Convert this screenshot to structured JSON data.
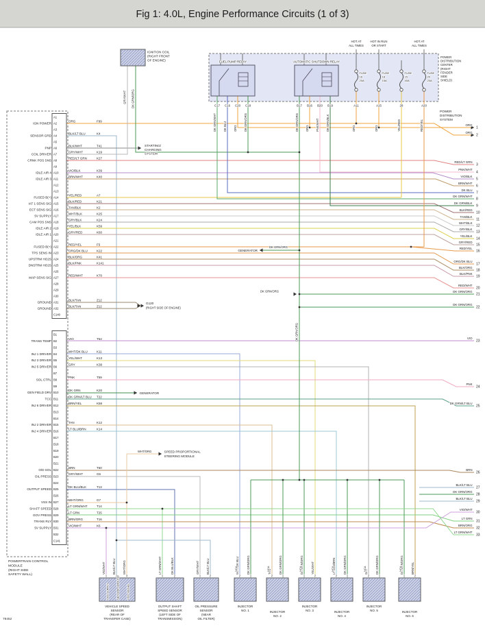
{
  "title": "Fig 1: 4.0L, Engine Performance Circuits (1 of 3)",
  "drawing_number": "78452",
  "colors": {
    "ORG": "#f0a43c",
    "BLK/LT BLU": "#9db8cc",
    "BLK/WHT": "#8a8a8a",
    "GRY/WHT": "#b9b9b9",
    "RED/LT GRN": "#e08080",
    "VIO/BLK": "#b48cc8",
    "BRN/WHT": "#c09a6a",
    "YEL/RED": "#e8c84a",
    "BLK/RED": "#a07070",
    "TAN/BLK": "#cbb089",
    "WHT/BLK": "#c8c8c8",
    "GRY/BLK": "#a8a8a8",
    "YEL/BLK": "#ddd04e",
    "GRY/RED": "#bfa0a0",
    "RED/YEL": "#e89a4a",
    "ORG/DK BLU": "#e09a50",
    "BLK/ORG": "#a98a60",
    "BLK/PNK": "#c898a8",
    "RED/WHT": "#e89090",
    "BLK/TAN": "#9a8a70",
    "VIO": "#c08ad0",
    "WHT/DK BLU": "#9aaad8",
    "YEL/WHT": "#e0d87a",
    "GRY": "#b0b0b0",
    "PNK": "#f0a8c0",
    "DK GRN": "#3f8f4f",
    "DK GRN/LT BLU": "#5aa08a",
    "BRN/YEL": "#c0a050",
    "TAN": "#d8bc90",
    "LT BLU/BRN": "#9cc8d8",
    "BRN": "#a8845a",
    "DK BLU/BLK": "#6070b0",
    "WHT/ORG": "#e8c8a0",
    "LT GRN/WHT": "#90d890",
    "LT GRN": "#80d080",
    "BRN/ORG": "#bc8a50",
    "VIO/WHT": "#cca0dc",
    "DK GRN/ORG": "#4a9a55",
    "DK GRN/WHT": "#58a868",
    "DK BLU": "#5868c0",
    "DK GRN/BLK": "#3a7a4a",
    "PNK/WHT": "#f2b8cc"
  },
  "ignition_coil": {
    "label_lines": [
      "IGNITION COIL",
      "(RIGHT FRONT",
      "OF ENGINE)"
    ],
    "wire_labels": [
      "GRY/WHT",
      "DK GRN/ORG"
    ]
  },
  "pdc": {
    "hot_labels": [
      [
        "HOT AT",
        "ALL TIMES"
      ],
      [
        "HOT IN RUN",
        "OR START"
      ],
      [
        "HOT AT",
        "ALL TIMES"
      ]
    ],
    "relay_labels": [
      "FUEL PUMP RELAY",
      "AUTOMATIC SHUTDOWN RELAY"
    ],
    "fuses": [
      {
        "label": "FUSE",
        "number": "16",
        "amps": "20A"
      },
      {
        "label": "FUSE",
        "number": "18",
        "amps": "15A"
      },
      {
        "label": "FUSE",
        "number": "15",
        "amps": "40A"
      },
      {
        "label": "FUSE",
        "number": "20",
        "amps": "20A"
      }
    ],
    "center_label_lines": [
      "POWER",
      "DISTRIBUTION",
      "CENTER",
      "(RIGHT",
      "FENDER",
      "SIDE",
      "SHIELD)"
    ],
    "drops": [
      {
        "label": "C17",
        "wire": "DK GRN/WHT"
      },
      {
        "label": "C16",
        "wire": "DK BLU"
      },
      {
        "label": "C20",
        "wire": "ORG"
      },
      {
        "label": "C18",
        "wire": "DK GRN/ORG"
      },
      {
        "label": "B17",
        "wire": "DK GRN/ORG"
      },
      {
        "label": "B16",
        "wire": "ORG"
      },
      {
        "label": "B20",
        "wire": "PNK/WHT"
      },
      {
        "label": "B19",
        "wire": "DK GRN/BLK"
      },
      {
        "label": "A11",
        "wire": "ORG"
      },
      {
        "label": "A15",
        "wire": "ORG"
      },
      {
        "label": "28",
        "wire": "YEL/RED"
      },
      {
        "label": "A20",
        "wire": "RED/YEL"
      }
    ]
  },
  "power_distribution_system_lines": [
    "POWER",
    "DISTRIBUTION",
    "SYSTEM"
  ],
  "pcm": {
    "module_label_lines": [
      "POWERTRAIN CONTROL",
      "MODULE",
      "(RIGHT SIDE",
      "SAFETY WALL)"
    ],
    "connector_a": {
      "end_label": "C140",
      "pins": [
        {
          "pin": "A1"
        },
        {
          "pin": "A2",
          "fn": "IGN POWER",
          "wire": "ORG",
          "ckt": "F99"
        },
        {
          "pin": "A3"
        },
        {
          "pin": "A4",
          "fn": "SENSOR GRD",
          "wire": "BLK/LT BLU",
          "ckt": "K4"
        },
        {
          "pin": "A5"
        },
        {
          "pin": "A6",
          "fn": "PNP",
          "wire": "BLK/WHT",
          "ckt": "T41"
        },
        {
          "pin": "A7",
          "fn": "COIL DRIVER",
          "wire": "GRY/WHT",
          "ckt": "K19"
        },
        {
          "pin": "A8",
          "fn": "CRNK POS SNS",
          "wire": "RED/LT GRN",
          "ckt": "K27"
        },
        {
          "pin": "A9"
        },
        {
          "pin": "A10",
          "fn": "IDLE AIR 4",
          "wire": "VIO/BLK",
          "ckt": "K39"
        },
        {
          "pin": "A11",
          "fn": "IDLE AIR 3",
          "wire": "BRN/WHT",
          "ckt": "K40"
        },
        {
          "pin": "A12"
        },
        {
          "pin": "A13"
        },
        {
          "pin": "A14",
          "fn": "FUSED B(+)",
          "wire": "YEL/RED",
          "ckt": "A7"
        },
        {
          "pin": "A15",
          "fn": "IAT 1 SENS SIG",
          "wire": "BLK/RED",
          "ckt": "K21"
        },
        {
          "pin": "A16",
          "fn": "ECT SENS SIG",
          "wire": "TAN/BLK",
          "ckt": "K2"
        },
        {
          "pin": "A17",
          "fn": "5V SUPPLY",
          "wire": "WHT/BLK",
          "ckt": "K25"
        },
        {
          "pin": "A18",
          "fn": "CAM POS SNS",
          "wire": "GRY/BLK",
          "ckt": "K24"
        },
        {
          "pin": "A19",
          "fn": "IDLE AIR 2",
          "wire": "YEL/BLK",
          "ckt": "K59"
        },
        {
          "pin": "A20",
          "fn": "IDLE AIR 1",
          "wire": "GRY/RED",
          "ckt": "K60"
        },
        {
          "pin": "A21"
        },
        {
          "pin": "A22",
          "fn": "FUSED B(+)",
          "wire": "RED/YEL",
          "ckt": "F5"
        },
        {
          "pin": "A23",
          "fn": "TPS SENS IN",
          "wire": "ORG/DK BLU",
          "ckt": "K22"
        },
        {
          "pin": "A24",
          "fn": "UPSTRM HO2S",
          "wire": "BLK/ORG",
          "ckt": "K41"
        },
        {
          "pin": "A25",
          "fn": "DNSTRM HO2S",
          "wire": "BLK/PNK",
          "ckt": "K141"
        },
        {
          "pin": "A26"
        },
        {
          "pin": "A27",
          "fn": "MAP SENS SIG",
          "wire": "RED/WHT",
          "ckt": "K70"
        },
        {
          "pin": "A28"
        },
        {
          "pin": "A29"
        },
        {
          "pin": "A30"
        },
        {
          "pin": "A31",
          "fn": "GROUND",
          "wire": "BLK/TAN",
          "ckt": "Z12"
        },
        {
          "pin": "A32",
          "fn": "GROUND",
          "wire": "BLK/TAN",
          "ckt": "Z12"
        }
      ]
    },
    "connector_b": {
      "end_label": "C141",
      "pins": [
        {
          "pin": "B1"
        },
        {
          "pin": "B2",
          "fn": "TRANS TEMP",
          "wire": "VIO",
          "ckt": "T54"
        },
        {
          "pin": "B3"
        },
        {
          "pin": "B4",
          "fn": "INJ 1 DRIVER",
          "wire": "WHT/DK BLU",
          "ckt": "K11"
        },
        {
          "pin": "B5",
          "fn": "INJ 3 DRIVER",
          "wire": "YEL/WHT",
          "ckt": "K13"
        },
        {
          "pin": "B6",
          "fn": "INJ 5 DRIVER",
          "wire": "GRY",
          "ckt": "K38"
        },
        {
          "pin": "B7"
        },
        {
          "pin": "B8",
          "fn": "SOL CTRL",
          "wire": "PNK",
          "ckt": "T59"
        },
        {
          "pin": "B9"
        },
        {
          "pin": "B10",
          "fn": "GEN FIELD DRV",
          "wire": "DK GRN",
          "ckt": "K20"
        },
        {
          "pin": "B11",
          "fn": "TCC",
          "wire": "DK GRN/LT BLU",
          "ckt": "T22"
        },
        {
          "pin": "B12",
          "fn": "INJ 6 DRIVER",
          "wire": "BRN/YEL",
          "ckt": "K58"
        },
        {
          "pin": "B13"
        },
        {
          "pin": "B14"
        },
        {
          "pin": "B15",
          "fn": "INJ 2 DRIVER",
          "wire": "TAN",
          "ckt": "K12"
        },
        {
          "pin": "B16",
          "fn": "INJ 4 DRIVER",
          "wire": "LT BLU/BRN",
          "ckt": "K14"
        },
        {
          "pin": "B17"
        },
        {
          "pin": "B18"
        },
        {
          "pin": "B19"
        },
        {
          "pin": "B20"
        },
        {
          "pin": "B21"
        },
        {
          "pin": "B22",
          "fn": "O/D SOL",
          "wire": "BRN",
          "ckt": "T60"
        },
        {
          "pin": "B23",
          "fn": "OIL PRESS",
          "wire": "GRY/WHT",
          "ckt": "G6"
        },
        {
          "pin": "B24"
        },
        {
          "pin": "B25",
          "fn": "OUTPUT SPEED",
          "wire": "DK BLU/BLK",
          "ckt": "T13"
        },
        {
          "pin": "B26"
        },
        {
          "pin": "B27",
          "fn": "VSS IN",
          "wire": "WHT/ORG",
          "ckt": "G7"
        },
        {
          "pin": "B28",
          "fn": "SHAFT SPEED",
          "wire": "LT GRN/WHT",
          "ckt": "T14"
        },
        {
          "pin": "B29",
          "fn": "GOV PRESS",
          "wire": "LT GRN",
          "ckt": "T25"
        },
        {
          "pin": "B30",
          "fn": "TRANS RLY",
          "wire": "BRN/ORG",
          "ckt": "T16"
        },
        {
          "pin": "B31",
          "fn": "5V SUPPLY",
          "wire": "VIO/WHT",
          "ckt": "K6"
        },
        {
          "pin": "B32"
        }
      ]
    }
  },
  "right_exits": [
    {
      "n": "1",
      "wire": "ORG"
    },
    {
      "n": "2",
      "wire": "ORG"
    },
    {
      "n": "3",
      "wire": "RED/LT GRN"
    },
    {
      "n": "4",
      "wire": "PNK/WHT"
    },
    {
      "n": "5",
      "wire": "VIO/BLK"
    },
    {
      "n": "6",
      "wire": "BRN/WHT"
    },
    {
      "n": "7",
      "wire": "DK BLU"
    },
    {
      "n": "8",
      "wire": "DK GRN/WHT"
    },
    {
      "n": "9",
      "wire": "DK GRN/BLK"
    },
    {
      "n": "10",
      "wire": "BLK/RED"
    },
    {
      "n": "11",
      "wire": "TAN/BLK"
    },
    {
      "n": "12",
      "wire": "WHT/BLK"
    },
    {
      "n": "13",
      "wire": "GRY/BLK"
    },
    {
      "n": "14",
      "wire": "YEL/BLK"
    },
    {
      "n": "15",
      "wire": "GRY/RED"
    },
    {
      "n": "16",
      "wire": "RED/YEL"
    },
    {
      "n": "17",
      "wire": "ORG/DK BLU"
    },
    {
      "n": "18",
      "wire": "BLK/ORG"
    },
    {
      "n": "19",
      "wire": "BLK/PNK"
    },
    {
      "n": "20",
      "wire": "RED/WHT"
    },
    {
      "n": "21",
      "wire": "DK GRN/ORG"
    },
    {
      "n": "22",
      "wire": "DK GRN/ORG"
    },
    {
      "n": "23",
      "wire": "VIO"
    },
    {
      "n": "24",
      "wire": "PNK"
    },
    {
      "n": "25",
      "wire": "DK GRN/LT BLU"
    },
    {
      "n": "26",
      "wire": "BRN"
    },
    {
      "n": "27",
      "wire": "BLK/LT BLU"
    },
    {
      "n": "28",
      "wire": "DK GRN/ORG"
    },
    {
      "n": "29",
      "wire": "BLK/LT BLU"
    },
    {
      "n": "30",
      "wire": "VIO/WHT"
    },
    {
      "n": "31",
      "wire": "LT GRN"
    },
    {
      "n": "32",
      "wire": "BRN/ORG"
    },
    {
      "n": "33",
      "wire": "LT GRN/WHT"
    }
  ],
  "annotations": {
    "starting_charging_lines": [
      "STARTING/",
      "CHARGING",
      "SYSTEM"
    ],
    "generator_upper": "GENERATOR",
    "generator_upper_wire": "DK GRN/ORG",
    "generator_lower": "GENERATOR",
    "ground_name": "G120",
    "ground_location": "(RIGHT SIDE OF ENGINE)",
    "speed_module_wire": "WHT/ORG",
    "speed_module_lines": [
      "SPEED PROPORTIONAL",
      "STEERING MODULE"
    ],
    "asd_bus_label": "DK GRN/ORG",
    "asd_branch_label": "DK GRN/ORG"
  },
  "bottom_components": [
    {
      "name": "vehicle-speed-sensor",
      "label_lines": [
        "VEHICLE SPEED",
        "SENSOR",
        "(REAR OF",
        "TRANSFER CASE)"
      ],
      "pins": [
        {
          "n": "1",
          "wire": "VIO/WHT",
          "fn": "VSS SUPPLY"
        },
        {
          "n": "2",
          "wire": "BLK/LT BLU",
          "fn": "SENSOR GROUND"
        },
        {
          "n": "3",
          "wire": "WHT/ORG",
          "fn": "VSS SIGNAL"
        }
      ]
    },
    {
      "name": "output-shaft-speed-sensor",
      "label_lines": [
        "OUTPUT SHAFT",
        "SPEED SENSOR",
        "(LEFT SIDE OF",
        "TRANSMISSION)"
      ],
      "pins": [
        {
          "n": "1",
          "wire": "LT GRN/WHT"
        },
        {
          "n": "2",
          "wire": "DK BLU/BLK"
        }
      ]
    },
    {
      "name": "oil-pressure-sensor",
      "label_lines": [
        "OIL PRESSURE",
        "SENSOR",
        "(NEAR",
        "OIL FILTER)"
      ],
      "pins": [
        {
          "n": "1",
          "wire": "GRY/WHT"
        },
        {
          "n": "2",
          "wire": "BLK/LT BLU"
        }
      ]
    },
    {
      "name": "injector-1",
      "nca": "NCA",
      "label_lines": [
        "INJECTOR",
        "NO. 1"
      ],
      "pins": [
        {
          "n": "2",
          "wire": "WHT/DK BLU"
        },
        {
          "n": "1",
          "wire": "DK GRN/ORG"
        }
      ]
    },
    {
      "name": "injector-2",
      "nca": "NCA",
      "label_lines": [
        "INJECTOR",
        "NO. 2"
      ],
      "pins": [
        {
          "n": "2",
          "wire": "TAN"
        },
        {
          "n": "1",
          "wire": "DK GRN/ORG"
        }
      ]
    },
    {
      "name": "injector-3",
      "nca": "NCA",
      "label_lines": [
        "INJECTOR",
        "NO. 3"
      ],
      "pins": [
        {
          "n": "1",
          "wire": "DK GRN/ORG"
        },
        {
          "n": "2",
          "wire": "YEL/WHT"
        }
      ]
    },
    {
      "name": "injector-4",
      "nca": "NCA",
      "label_lines": [
        "INJECTOR",
        "NO. 4"
      ],
      "pins": [
        {
          "n": "2",
          "wire": "LT BLU/BRN"
        },
        {
          "n": "1",
          "wire": "DK GRN/ORG"
        }
      ]
    },
    {
      "name": "injector-5",
      "nca": "NCA",
      "label_lines": [
        "INJECTOR",
        "NO. 5"
      ],
      "pins": [
        {
          "n": "2",
          "wire": "GRY"
        },
        {
          "n": "1",
          "wire": "DK GRN/ORG"
        }
      ]
    },
    {
      "name": "injector-6",
      "nca": "NCA",
      "label_lines": [
        "INJECTOR",
        "NO. 6"
      ],
      "pins": [
        {
          "n": "1",
          "wire": "DK GRN/ORG"
        },
        {
          "n": "2",
          "wire": "BRN/YEL"
        }
      ]
    }
  ]
}
